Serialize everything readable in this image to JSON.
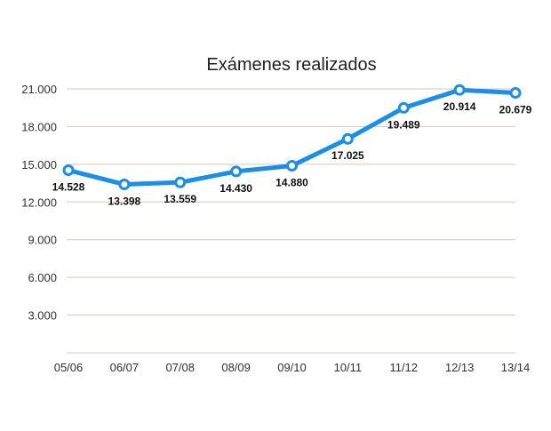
{
  "chart_data": {
    "type": "line",
    "title": "Exámenes realizados",
    "categories": [
      "05/06",
      "06/07",
      "07/08",
      "08/09",
      "09/10",
      "10/11",
      "11/12",
      "12/13",
      "13/14"
    ],
    "series": [
      {
        "values": [
          14528,
          13398,
          13559,
          14430,
          14880,
          17025,
          19489,
          20914,
          20679
        ],
        "labels": [
          "14.528",
          "13.398",
          "13.559",
          "14.430",
          "14.880",
          "17.025",
          "19.489",
          "20.914",
          "20.679"
        ],
        "color": "#1a8fe8"
      }
    ],
    "yticks": [
      {
        "value": 3000,
        "label": "3.000"
      },
      {
        "value": 6000,
        "label": "6.000"
      },
      {
        "value": 9000,
        "label": "9.000"
      },
      {
        "value": 12000,
        "label": "12.000"
      },
      {
        "value": 15000,
        "label": "15.000"
      },
      {
        "value": 18000,
        "label": "18.000"
      },
      {
        "value": 21000,
        "label": "21.000"
      }
    ],
    "ylim": [
      0,
      21000
    ],
    "grid": true,
    "xlabel": "",
    "ylabel": ""
  }
}
